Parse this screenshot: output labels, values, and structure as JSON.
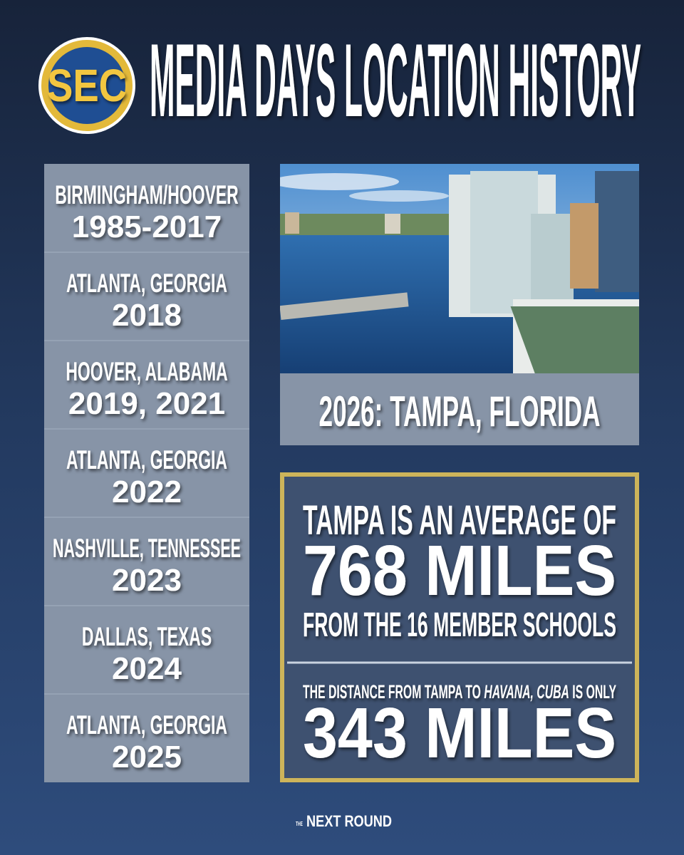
{
  "logo": {
    "text": "SEC"
  },
  "header": {
    "title": "MEDIA DAYS LOCATION HISTORY"
  },
  "history": [
    {
      "location": "BIRMINGHAM/HOOVER",
      "years": "1985-2017"
    },
    {
      "location": "ATLANTA, GEORGIA",
      "years": "2018"
    },
    {
      "location": "HOOVER, ALABAMA",
      "years": "2019, 2021"
    },
    {
      "location": "ATLANTA, GEORGIA",
      "years": "2022"
    },
    {
      "location": "NASHVILLE, TENNESSEE",
      "years": "2023"
    },
    {
      "location": "DALLAS, TEXAS",
      "years": "2024"
    },
    {
      "location": "ATLANTA, GEORGIA",
      "years": "2025"
    }
  ],
  "feature": {
    "caption": "2026: TAMPA, FLORIDA"
  },
  "stats": {
    "average": {
      "intro": "TAMPA IS AN AVERAGE OF",
      "figure": "768 MILES",
      "outro": "FROM THE 16 MEMBER SCHOOLS"
    },
    "havana": {
      "intro_start": "THE DISTANCE FROM TAMPA TO ",
      "intro_place": "HAVANA, CUBA",
      "intro_end": " IS ONLY",
      "figure": "343 MILES"
    }
  },
  "footer": {
    "prefix": "THE",
    "brand": "NEXT ROUND"
  }
}
